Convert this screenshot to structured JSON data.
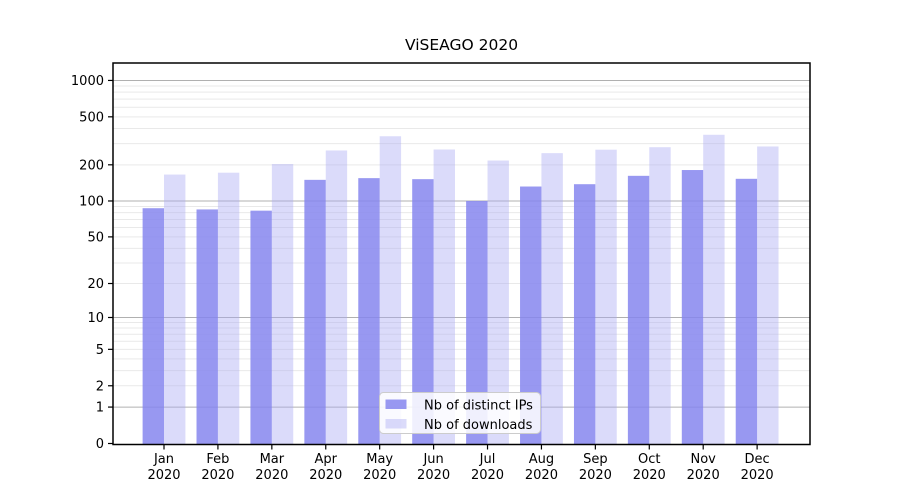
{
  "chart_data": {
    "type": "bar",
    "title": "ViSEAGO 2020",
    "yscale": "log1p",
    "ylim": [
      0,
      1400
    ],
    "yticks": [
      0,
      1,
      2,
      5,
      10,
      20,
      50,
      100,
      200,
      500,
      1000
    ],
    "categories": [
      {
        "month": "Jan",
        "year": "2020"
      },
      {
        "month": "Feb",
        "year": "2020"
      },
      {
        "month": "Mar",
        "year": "2020"
      },
      {
        "month": "Apr",
        "year": "2020"
      },
      {
        "month": "May",
        "year": "2020"
      },
      {
        "month": "Jun",
        "year": "2020"
      },
      {
        "month": "Jul",
        "year": "2020"
      },
      {
        "month": "Aug",
        "year": "2020"
      },
      {
        "month": "Sep",
        "year": "2020"
      },
      {
        "month": "Oct",
        "year": "2020"
      },
      {
        "month": "Nov",
        "year": "2020"
      },
      {
        "month": "Dec",
        "year": "2020"
      }
    ],
    "series": [
      {
        "key": "distinct-ips",
        "name": "Nb of distinct IPs",
        "color": "rgba(134,134,238,0.85)",
        "values": [
          87,
          85,
          83,
          150,
          155,
          152,
          100,
          132,
          138,
          162,
          181,
          153
        ]
      },
      {
        "key": "downloads",
        "name": "Nb of downloads",
        "color": "rgba(170,170,242,0.42)",
        "values": [
          166,
          172,
          203,
          263,
          345,
          268,
          217,
          250,
          267,
          280,
          355,
          284
        ]
      }
    ],
    "grid": {
      "major": [
        1,
        10,
        100,
        1000
      ],
      "minor": [
        2,
        3,
        4,
        5,
        6,
        7,
        8,
        9,
        20,
        30,
        40,
        50,
        60,
        70,
        80,
        90,
        200,
        300,
        400,
        500,
        600,
        700,
        800,
        900
      ]
    },
    "legend": {
      "position": "bottom-center",
      "background": "rgba(255,255,255,0.85)",
      "border": "#cccccc"
    },
    "colors": {
      "spine": "#000000",
      "text": "#000000",
      "grid_major": "#b0b0b0",
      "grid_minor": "#e9e9e9"
    }
  }
}
